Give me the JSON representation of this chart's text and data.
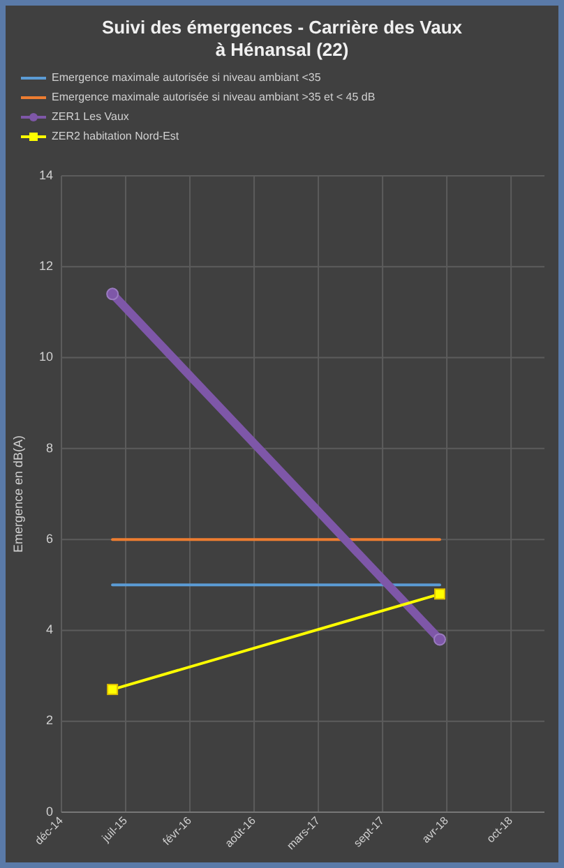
{
  "chart_data": {
    "type": "line",
    "title": "Suivi des émergences - Carrière des Vaux à Hénansal (22)",
    "ylabel": "Emergence en dB(A)",
    "xlim": [
      "2014-12-28",
      "2019-02-09"
    ],
    "xticks": [
      {
        "value": "2014-12-28",
        "label": "déc-14"
      },
      {
        "value": "2015-07-16",
        "label": "juil-15"
      },
      {
        "value": "2016-02-01",
        "label": "févr-16"
      },
      {
        "value": "2016-08-19",
        "label": "août-16"
      },
      {
        "value": "2017-03-07",
        "label": "mars-17"
      },
      {
        "value": "2017-09-23",
        "label": "sept-17"
      },
      {
        "value": "2018-04-11",
        "label": "avr-18"
      },
      {
        "value": "2018-10-28",
        "label": "oct-18"
      }
    ],
    "ylim": [
      0,
      14
    ],
    "yticks": [
      0,
      2,
      4,
      6,
      8,
      10,
      12,
      14
    ],
    "grid": true,
    "legend": "top",
    "series": [
      {
        "name": "Emergence maximale autorisée si niveau ambiant <35",
        "color": "#5b9bd5",
        "x": [
          "2015-06-05",
          "2018-03-20"
        ],
        "values": [
          5,
          5
        ],
        "marker": "none"
      },
      {
        "name": "Emergence maximale autorisée si niveau ambiant >35 et < 45 dB",
        "color": "#ed7d31",
        "x": [
          "2015-06-05",
          "2018-03-20"
        ],
        "values": [
          6,
          6
        ],
        "marker": "none"
      },
      {
        "name": "ZER1 Les Vaux",
        "color": "#7e57a8",
        "x": [
          "2015-06-05",
          "2018-03-20"
        ],
        "values": [
          11.4,
          3.8
        ],
        "marker": "circle"
      },
      {
        "name": "ZER2 habitation Nord-Est",
        "color": "#ffff00",
        "x": [
          "2015-06-05",
          "2018-03-20"
        ],
        "values": [
          2.7,
          4.8
        ],
        "marker": "square"
      }
    ]
  }
}
